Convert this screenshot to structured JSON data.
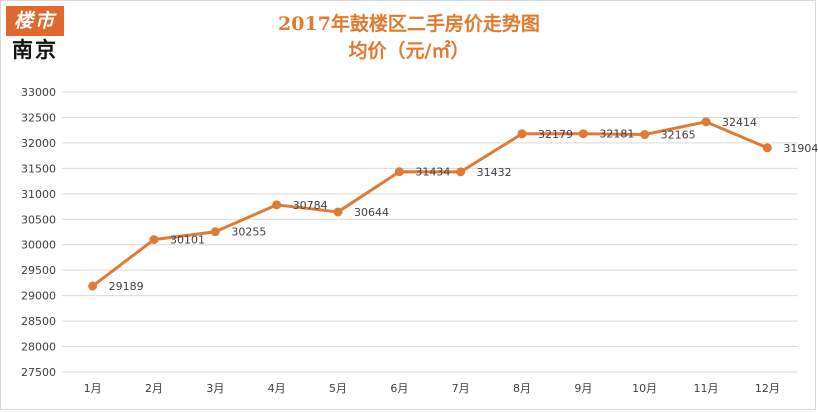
{
  "logo": {
    "top": "楼市",
    "bottom": "南京"
  },
  "colors": {
    "line": "#e07b35",
    "title": "#e07a2e",
    "logo_bg": "#e06a2e",
    "grid": "#d9d9d9"
  },
  "chart_data": {
    "type": "line",
    "title": "2017年鼓楼区二手房价走势图",
    "subtitle": "均价（元/㎡）",
    "categories": [
      "1月",
      "2月",
      "3月",
      "4月",
      "5月",
      "6月",
      "7月",
      "8月",
      "9月",
      "10月",
      "11月",
      "12月"
    ],
    "values": [
      29189,
      30101,
      30255,
      30784,
      30644,
      31434,
      31432,
      32179,
      32181,
      32165,
      32414,
      31904
    ],
    "yticks": [
      27500,
      28000,
      28500,
      29000,
      29500,
      30000,
      30500,
      31000,
      31500,
      32000,
      32500,
      33000
    ],
    "ylim": [
      27500,
      33000
    ],
    "grid": "horizontal",
    "legend": "none",
    "data_labels": true
  }
}
